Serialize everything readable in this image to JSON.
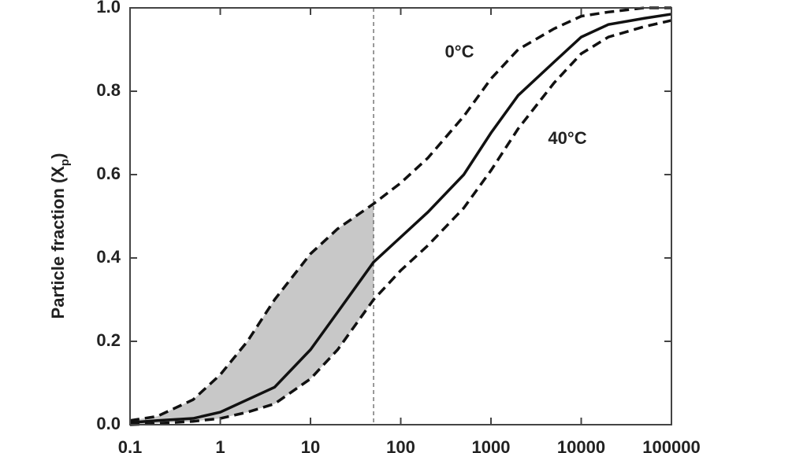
{
  "chart_data": {
    "type": "line",
    "y_label": {
      "text": "Particle fraction (X",
      "sub": "p",
      "close": ")"
    },
    "annotations": [
      "0°C",
      "40°C"
    ],
    "x": [
      0.1,
      0.2,
      0.5,
      1,
      2,
      4,
      10,
      20,
      50,
      100,
      200,
      500,
      1000,
      2000,
      5000,
      10000,
      20000,
      50000,
      100000
    ],
    "series": [
      {
        "color": "#111111",
        "dashed": true,
        "values": [
          0.01,
          0.02,
          0.06,
          0.12,
          0.2,
          0.3,
          0.41,
          0.47,
          0.53,
          0.58,
          0.64,
          0.74,
          0.83,
          0.9,
          0.95,
          0.98,
          0.99,
          1.0,
          1.0
        ]
      },
      {
        "color": "#111111",
        "dashed": false,
        "values": [
          0.005,
          0.01,
          0.015,
          0.03,
          0.06,
          0.09,
          0.18,
          0.27,
          0.39,
          0.45,
          0.51,
          0.6,
          0.7,
          0.79,
          0.87,
          0.93,
          0.96,
          0.975,
          0.985
        ]
      },
      {
        "color": "#111111",
        "dashed": true,
        "values": [
          0.0,
          0.003,
          0.008,
          0.015,
          0.03,
          0.05,
          0.11,
          0.18,
          0.3,
          0.37,
          0.43,
          0.52,
          0.61,
          0.71,
          0.82,
          0.89,
          0.93,
          0.955,
          0.97
        ]
      }
    ],
    "shade_color": "#c8c8c8",
    "vline": 50,
    "xlim": [
      0.1,
      100000
    ],
    "xlog": true,
    "xticks": [
      0.1,
      1,
      10,
      100,
      1000,
      10000,
      100000
    ],
    "ylim": [
      0,
      1
    ],
    "yticks": [
      {
        "value": 0,
        "label": "0.0"
      },
      0.2,
      0.4,
      0.6,
      0.8,
      {
        "value": 1,
        "label": "1.0"
      }
    ]
  }
}
